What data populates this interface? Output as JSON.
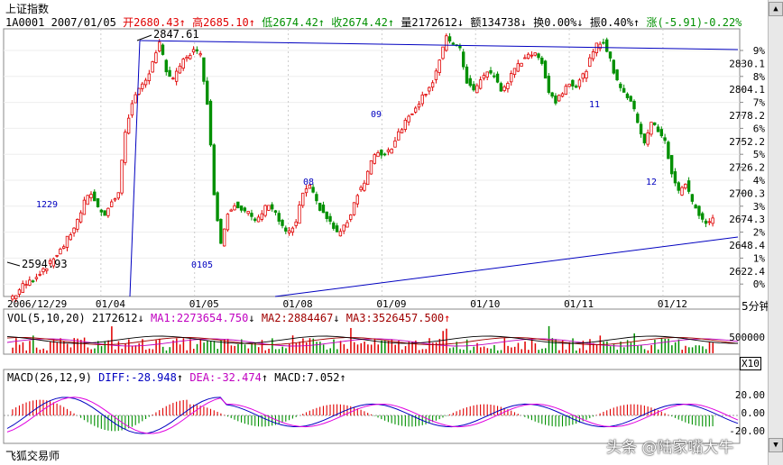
{
  "title": "上证指数",
  "quote": {
    "code": "1A0001",
    "date": "2007/01/05",
    "open_label": "开",
    "open": "2680.43",
    "high_label": "高",
    "high": "2685.10",
    "low_label": "低",
    "low": "2674.42",
    "close_label": "收",
    "close": "2674.42",
    "volume_label": "量",
    "volume": "2172612",
    "amount_label": "额",
    "amount": "134738",
    "turnover_label": "换",
    "turnover": "0.00%",
    "amplitude_label": "振",
    "amplitude": "0.40%",
    "change_label": "涨",
    "change": "(-5.91)-0.22%"
  },
  "vol_indicator": {
    "name": "VOL(5,10,20)",
    "value": "2172612",
    "ma1": "MA1:2273654.750",
    "ma2": "MA2:2884467",
    "ma3": "MA3:3526457.500"
  },
  "macd_indicator": {
    "name": "MACD(26,12,9)",
    "diff": "DIFF:-28.948",
    "dea": "DEA:-32.474",
    "macd": "MACD:7.052"
  },
  "price_axis": [
    "9%",
    "2830.1",
    "8%",
    "2804.1",
    "7%",
    "2778.2",
    "6%",
    "2752.2",
    "5%",
    "2726.2",
    "4%",
    "2700.3",
    "3%",
    "2674.3",
    "2%",
    "2648.4",
    "1%",
    "2622.4",
    "0%"
  ],
  "vol_axis": [
    "500000"
  ],
  "vol_unit": "X10",
  "macd_axis": [
    "20.00",
    "0.00",
    "-20.00"
  ],
  "date_axis": [
    "2006/12/29",
    "01/04",
    "01/05",
    "01/08",
    "01/09",
    "01/10",
    "01/11",
    "01/12"
  ],
  "period": "5分钟",
  "annotations": {
    "high_price": "2847.61",
    "low_price": "2594.93",
    "day_labels": [
      "1229",
      "0105",
      "08",
      "09",
      "11",
      "12"
    ]
  },
  "app_name": "飞狐交易师",
  "watermark": "头条 @陆家嘴大牛",
  "colors": {
    "up": "#e00000",
    "down": "#009000",
    "trendline": "#0000c0",
    "ma1": "#c000c0",
    "ma2": "#a00000",
    "ma3": "#000000"
  },
  "chart_data": {
    "type": "candlestick",
    "title": "上证指数",
    "period": "5分钟",
    "x_categories": [
      "2006/12/29",
      "01/04",
      "01/05",
      "01/08",
      "01/09",
      "01/10",
      "01/11",
      "01/12"
    ],
    "ylim": [
      2610,
      2850
    ],
    "price_path": [
      2595,
      2600,
      2608,
      2612,
      2618,
      2625,
      2630,
      2640,
      2648,
      2660,
      2672,
      2690,
      2700,
      2685,
      2680,
      2690,
      2700,
      2760,
      2790,
      2800,
      2810,
      2830,
      2847,
      2820,
      2810,
      2825,
      2835,
      2840,
      2835,
      2790,
      2700,
      2650,
      2680,
      2690,
      2685,
      2680,
      2670,
      2680,
      2690,
      2680,
      2665,
      2660,
      2670,
      2700,
      2705,
      2690,
      2680,
      2670,
      2660,
      2665,
      2680,
      2700,
      2710,
      2730,
      2740,
      2738,
      2745,
      2760,
      2770,
      2780,
      2790,
      2800,
      2810,
      2830,
      2852,
      2848,
      2840,
      2810,
      2800,
      2810,
      2820,
      2815,
      2800,
      2810,
      2820,
      2830,
      2838,
      2835,
      2830,
      2800,
      2790,
      2800,
      2810,
      2805,
      2815,
      2830,
      2845,
      2850,
      2830,
      2810,
      2800,
      2790,
      2770,
      2750,
      2770,
      2760,
      2750,
      2720,
      2700,
      2710,
      2690,
      2680,
      2670,
      2675
    ],
    "highs": {
      "value": 2847.61
    },
    "lows": {
      "value": 2594.93
    },
    "volume_series": {
      "name": "VOL",
      "last": 2172612,
      "ma": [
        2273654.75,
        2884467,
        3526457.5
      ]
    },
    "macd_series": {
      "diff": -28.948,
      "dea": -32.474,
      "macd": 7.052,
      "ylim": [
        -28,
        28
      ]
    }
  }
}
